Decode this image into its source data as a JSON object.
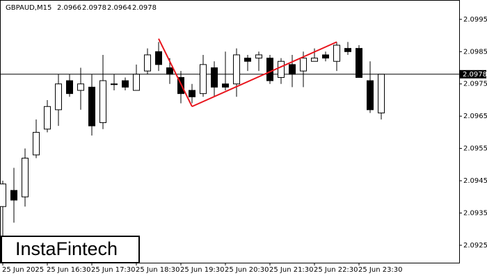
{
  "chart_data": {
    "type": "candlestick",
    "header": {
      "symbol": "GBPAUD,M15",
      "ohlc": [
        2.0966,
        2.0978,
        2.0964,
        2.0978
      ]
    },
    "watermark": "InstaFintech",
    "categories": [
      "25 Jun 2025",
      null,
      null,
      null,
      "25 Jun 16:30",
      null,
      null,
      null,
      "25 Jun 17:30",
      null,
      null,
      null,
      "25 Jun 18:30",
      null,
      null,
      null,
      "25 Jun 19:30",
      null,
      null,
      null,
      "25 Jun 20:30",
      null,
      null,
      null,
      "25 Jun 21:30",
      null,
      null,
      null,
      "25 Jun 22:30",
      null,
      null,
      null,
      "25 Jun 23:30",
      null,
      null
    ],
    "open": [
      2.0937,
      2.0942,
      2.094,
      2.0953,
      2.0961,
      2.0967,
      2.0976,
      2.0973,
      2.0974,
      2.0963,
      2.0975,
      2.0976,
      2.0973,
      2.0979,
      2.0985,
      2.098,
      2.0977,
      2.0973,
      2.0972,
      2.098,
      2.0975,
      2.0975,
      2.0983,
      2.0983,
      2.0983,
      2.0977,
      2.0981,
      2.0979,
      2.0982,
      2.0984,
      2.0982,
      2.0986,
      2.0986,
      2.0976,
      2.0966
    ],
    "high": [
      2.0945,
      2.0949,
      2.0955,
      2.0964,
      2.097,
      2.0978,
      2.0978,
      2.098,
      2.0978,
      2.0984,
      2.0978,
      2.0977,
      2.0981,
      2.0986,
      2.0988,
      2.0983,
      2.0979,
      2.0975,
      2.0984,
      2.0982,
      2.0985,
      2.0986,
      2.0984,
      2.0985,
      2.0984,
      2.0983,
      2.0984,
      2.0985,
      2.0986,
      2.0985,
      2.0988,
      2.0988,
      2.0987,
      2.0982,
      2.0978
    ],
    "low": [
      2.092,
      2.0932,
      2.0937,
      2.0952,
      2.096,
      2.0962,
      2.0971,
      2.0967,
      2.0959,
      2.0961,
      2.0973,
      2.0973,
      2.0973,
      2.0978,
      2.0979,
      2.0975,
      2.0969,
      2.0969,
      2.0971,
      2.0971,
      2.0973,
      2.0971,
      2.0979,
      2.0979,
      2.0975,
      2.0975,
      2.0974,
      2.0974,
      2.0982,
      2.0982,
      2.0979,
      2.0984,
      2.0977,
      2.0966,
      2.0964
    ],
    "close": [
      2.0944,
      2.0939,
      2.0952,
      2.096,
      2.0968,
      2.0975,
      2.0972,
      2.0975,
      2.0962,
      2.0976,
      2.0975,
      2.0974,
      2.0978,
      2.0984,
      2.0981,
      2.0978,
      2.0972,
      2.0971,
      2.0981,
      2.0974,
      2.0974,
      2.0984,
      2.0982,
      2.0984,
      2.0976,
      2.0982,
      2.0978,
      2.0983,
      2.0983,
      2.0983,
      2.0987,
      2.0985,
      2.0977,
      2.0967,
      2.0978
    ],
    "up_color": "#ffffff",
    "down_color": "#000000",
    "line_color": "#000000",
    "ylim": [
      2.09196,
      2.1001
    ],
    "yticks": [
      2.0995,
      2.0985,
      2.0975,
      2.0965,
      2.0955,
      2.0945,
      2.0935,
      2.0925
    ],
    "last_price": 2.0978,
    "pattern": {
      "color": "#e8141c",
      "points": [
        {
          "index": 14,
          "value": 2.0989
        },
        {
          "index": 17,
          "value": 2.0968
        },
        {
          "index": 30,
          "value": 2.0988
        }
      ]
    }
  }
}
